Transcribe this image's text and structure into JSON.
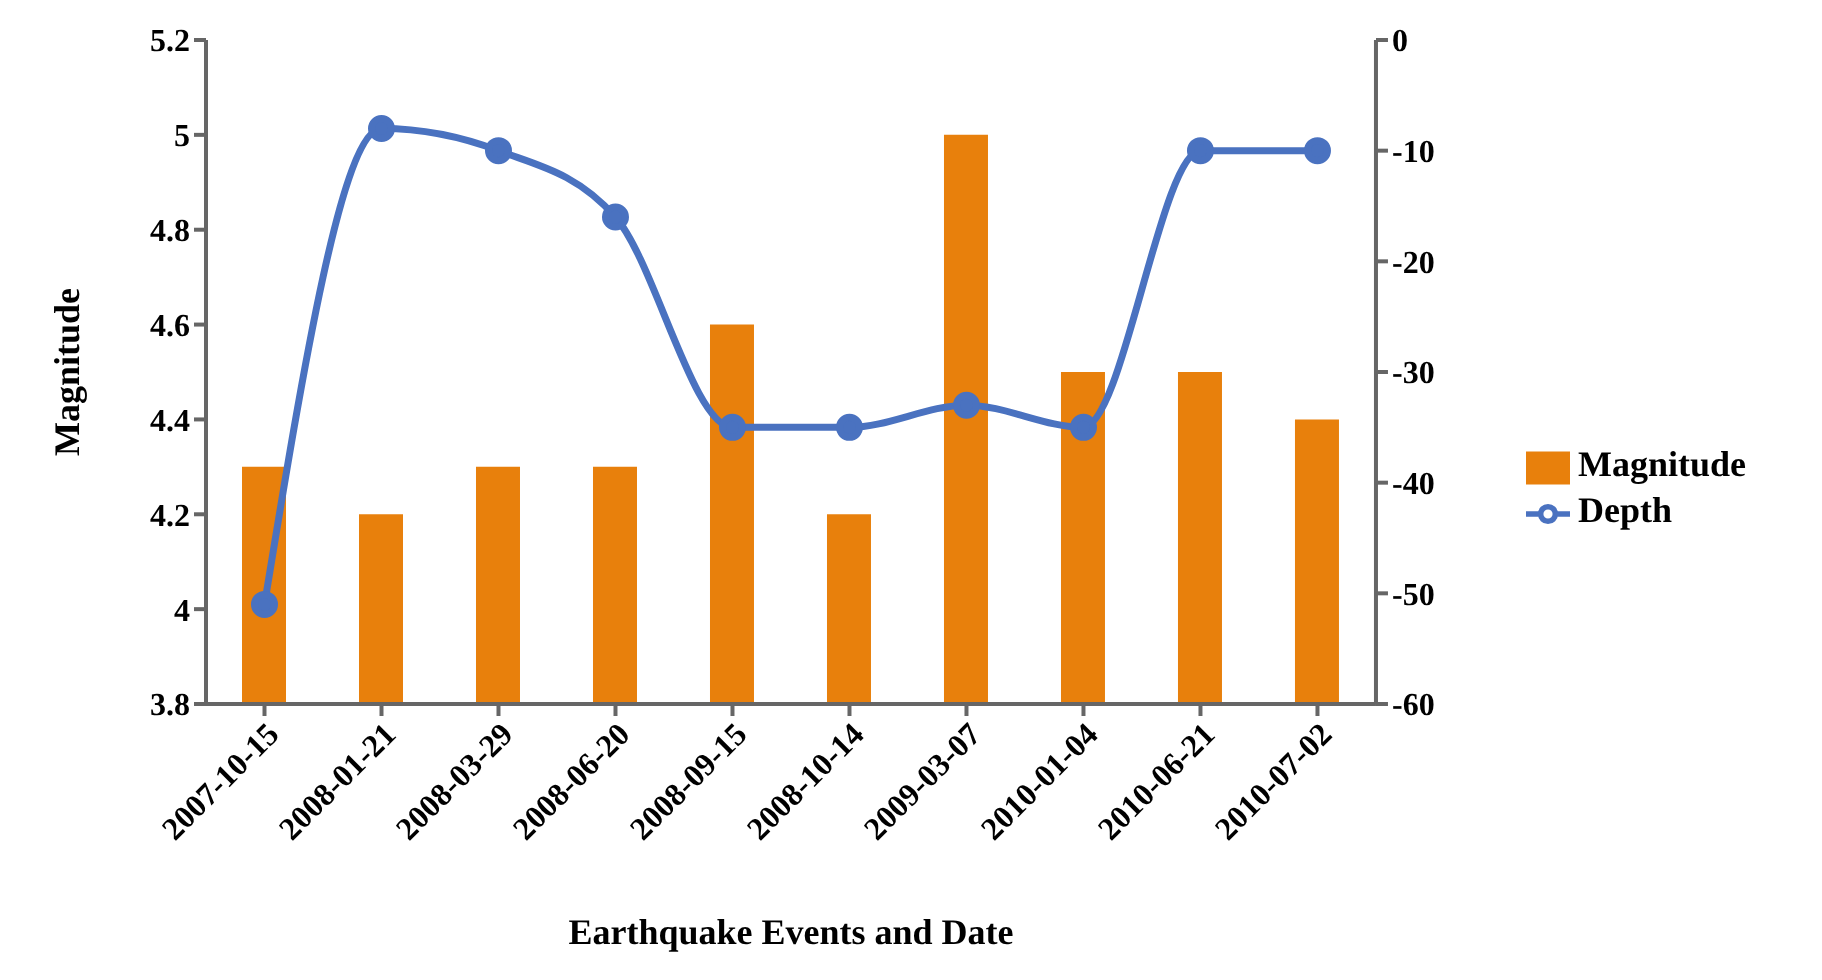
{
  "chart_data": {
    "type": "bar",
    "xlabel": "Earthquake Events and Date",
    "ylabel": "Magnitude",
    "categories": [
      "2007-10-15",
      "2008-01-21",
      "2008-03-29",
      "2008-06-20",
      "2008-09-15",
      "2008-10-14",
      "2009-03-07",
      "2010-01-04",
      "2010-06-21",
      "2010-07-02"
    ],
    "series": [
      {
        "name": "Magnitude",
        "color": "#e8800c",
        "values": [
          4.3,
          4.2,
          4.3,
          4.3,
          4.6,
          4.2,
          5.0,
          4.5,
          4.5,
          4.4
        ]
      },
      {
        "name": "Depth",
        "type": "line",
        "axis": "y2",
        "color": "#4a72c0",
        "values": [
          -51,
          -8,
          -10,
          -16,
          -35,
          -35,
          -33,
          -35,
          -10,
          -10
        ]
      }
    ],
    "ylim": [
      3.8,
      5.2
    ],
    "yticks": [
      3.8,
      4,
      4.2,
      4.4,
      4.6,
      4.8,
      5,
      5.2
    ],
    "y2lim": [
      -60,
      0
    ],
    "y2ticks": [
      -60,
      -50,
      -40,
      -30,
      -20,
      -10,
      0
    ],
    "legend": "right",
    "grid": false,
    "marker": "circle",
    "line_style": "solid"
  }
}
